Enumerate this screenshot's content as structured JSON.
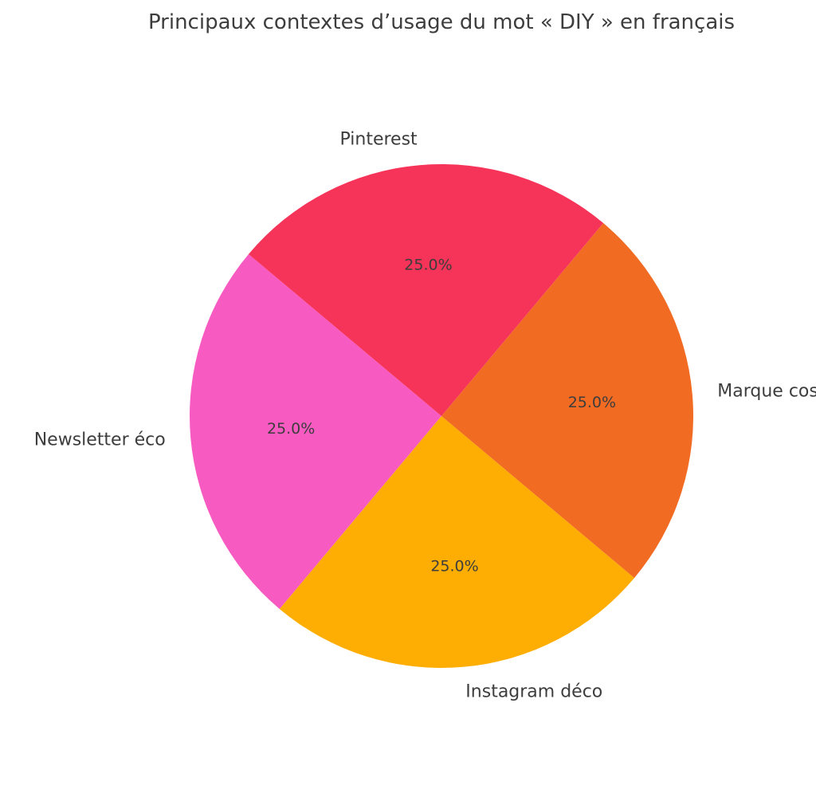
{
  "chart_data": {
    "type": "pie",
    "title": "Principaux contextes d’usage du mot « DIY » en français",
    "start_angle_deg": 140,
    "direction": "counterclockwise",
    "slices": [
      {
        "label": "Newsletter éco",
        "value": 25.0,
        "pct_label": "25.0%",
        "color": "#f75bc1"
      },
      {
        "label": "Instagram déco",
        "value": 25.0,
        "pct_label": "25.0%",
        "color": "#feae02"
      },
      {
        "label": "Marque cosmétique",
        "value": 25.0,
        "pct_label": "25.0%",
        "color": "#f26b23"
      },
      {
        "label": "Pinterest",
        "value": 25.0,
        "pct_label": "25.0%",
        "color": "#f63358"
      }
    ]
  }
}
